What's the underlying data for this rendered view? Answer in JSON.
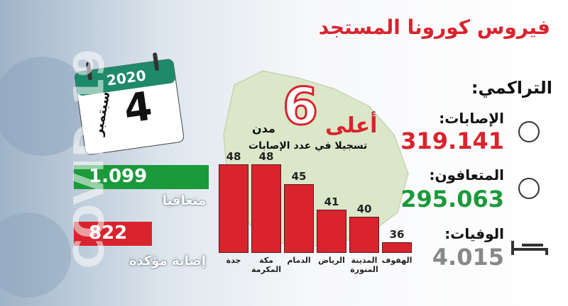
{
  "chart_data": {
    "type": "bar",
    "categories": [
      "جدة",
      "مكة المكرمة",
      "الدمام",
      "الرياض",
      "المدينة المنورة",
      "الهفوف"
    ],
    "values": [
      48,
      48,
      45,
      41,
      40,
      36
    ],
    "color": "#d9232d",
    "ylim": [
      34.4,
      48
    ]
  },
  "header": {
    "title": "فيروس كورونا المستجد",
    "background_text": "COVID-19"
  },
  "calendar": {
    "year": "2020",
    "day": "4",
    "month": "سبتمبر"
  },
  "highlight": {
    "prefix": "أعلى",
    "number": "6",
    "suffix": "مدن",
    "subtitle": "تسجيلا في عدد الإصابات"
  },
  "daily": {
    "recovered": "1.099",
    "recovered_label": "متعافيا",
    "cases": "822",
    "cases_label": "إصابة مؤكدة"
  },
  "cumulative": {
    "title": "التراكمي:",
    "cases_label": "الإصابات:",
    "cases": "319.141",
    "recovered_label": "المتعافون:",
    "recovered": "295.063",
    "deaths_label": "الوفيات:",
    "deaths": "4.015"
  }
}
